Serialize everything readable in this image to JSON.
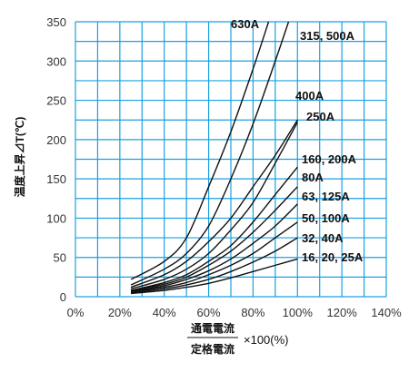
{
  "chart_data": {
    "type": "line",
    "ylabel": "温度上昇⊿T(℃)",
    "xlabel_numerator": "通電電流",
    "xlabel_denominator": "定格電流",
    "xlabel_suffix": "×100(%)",
    "xlim": [
      0,
      140
    ],
    "ylim": [
      0,
      350
    ],
    "grid": true,
    "x_ticks": [
      {
        "value": 0,
        "label": "0%"
      },
      {
        "value": 20,
        "label": "20%"
      },
      {
        "value": 40,
        "label": "40%"
      },
      {
        "value": 60,
        "label": "60%"
      },
      {
        "value": 80,
        "label": "80%"
      },
      {
        "value": 100,
        "label": "100%"
      },
      {
        "value": 120,
        "label": "120%"
      },
      {
        "value": 140,
        "label": "140%"
      }
    ],
    "y_ticks": [
      {
        "value": 0,
        "label": "0"
      },
      {
        "value": 50,
        "label": "50"
      },
      {
        "value": 100,
        "label": "100"
      },
      {
        "value": 150,
        "label": "150"
      },
      {
        "value": 200,
        "label": "200"
      },
      {
        "value": 250,
        "label": "250"
      },
      {
        "value": 300,
        "label": "300"
      },
      {
        "value": 350,
        "label": "350"
      }
    ],
    "series": [
      {
        "name": "630A",
        "x": [
          25,
          40,
          50,
          60,
          70,
          80,
          87
        ],
        "y": [
          22,
          45,
          75,
          140,
          210,
          290,
          350
        ]
      },
      {
        "name": "315, 500A",
        "x": [
          25,
          40,
          50,
          60,
          70,
          80,
          90,
          96
        ],
        "y": [
          15,
          35,
          55,
          90,
          150,
          220,
          300,
          350
        ]
      },
      {
        "name": "400A",
        "x": [
          25,
          40,
          50,
          60,
          70,
          80,
          90,
          100
        ],
        "y": [
          12,
          28,
          45,
          70,
          100,
          140,
          180,
          225
        ]
      },
      {
        "name": "250A",
        "x": [
          25,
          40,
          50,
          60,
          70,
          80,
          90,
          100
        ],
        "y": [
          10,
          22,
          35,
          55,
          85,
          120,
          170,
          222
        ]
      },
      {
        "name": "160, 200A",
        "x": [
          25,
          40,
          50,
          60,
          70,
          80,
          90,
          100
        ],
        "y": [
          8,
          18,
          28,
          45,
          65,
          95,
          130,
          165
        ]
      },
      {
        "name": "80A",
        "x": [
          25,
          40,
          50,
          60,
          70,
          80,
          90,
          100
        ],
        "y": [
          8,
          16,
          25,
          40,
          58,
          82,
          110,
          140
        ]
      },
      {
        "name": "63, 125A",
        "x": [
          25,
          40,
          50,
          60,
          70,
          80,
          90,
          100
        ],
        "y": [
          7,
          14,
          22,
          33,
          48,
          68,
          90,
          118
        ]
      },
      {
        "name": "50, 100A",
        "x": [
          25,
          40,
          50,
          60,
          70,
          80,
          90,
          100
        ],
        "y": [
          6,
          12,
          18,
          28,
          40,
          55,
          75,
          95
        ]
      },
      {
        "name": "32, 40A",
        "x": [
          25,
          40,
          50,
          60,
          70,
          80,
          90,
          100
        ],
        "y": [
          5,
          10,
          15,
          22,
          32,
          44,
          58,
          75
        ]
      },
      {
        "name": "16, 20, 25A",
        "x": [
          25,
          40,
          50,
          60,
          70,
          80,
          90,
          100
        ],
        "y": [
          4,
          8,
          12,
          17,
          24,
          32,
          40,
          48
        ]
      }
    ]
  },
  "colors": {
    "grid": "#1aa0e0",
    "line": "#111111",
    "background": "#ffffff"
  }
}
